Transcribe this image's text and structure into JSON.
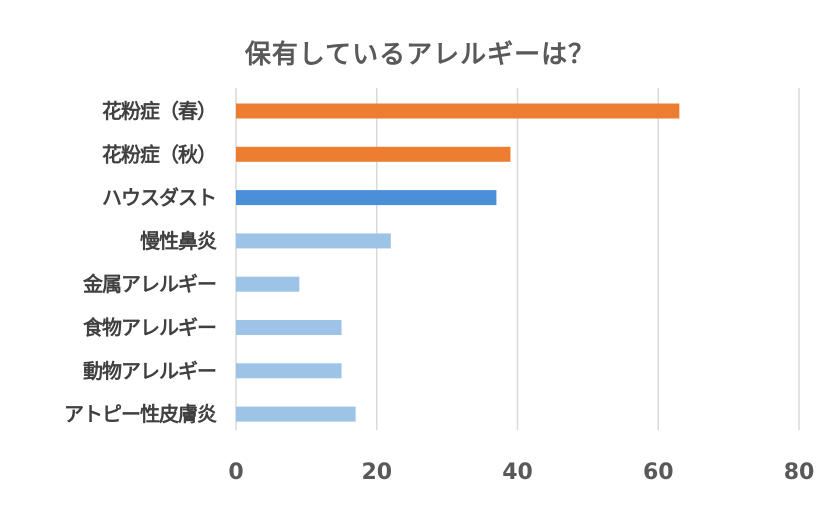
{
  "chart_data": {
    "type": "bar",
    "orientation": "horizontal",
    "title": "保有しているアレルギーは？",
    "xlabel": "",
    "ylabel": "",
    "categories": [
      "花粉症（春）",
      "花粉症（秋）",
      "ハウスダスト",
      "慢性鼻炎",
      "金属アレルギー",
      "食物アレルギー",
      "動物アレルギー",
      "アトピー性皮膚炎"
    ],
    "values": [
      63,
      39,
      37,
      22,
      9,
      15,
      15,
      17
    ],
    "bar_colors": [
      "#ed7d31",
      "#ed7d31",
      "#4a90d9",
      "#9dc3e6",
      "#9dc3e6",
      "#9dc3e6",
      "#9dc3e6",
      "#9dc3e6"
    ],
    "xlim": [
      0,
      80
    ],
    "xticks": [
      0,
      20,
      40,
      60,
      80
    ],
    "grid": true,
    "legend": "none"
  }
}
